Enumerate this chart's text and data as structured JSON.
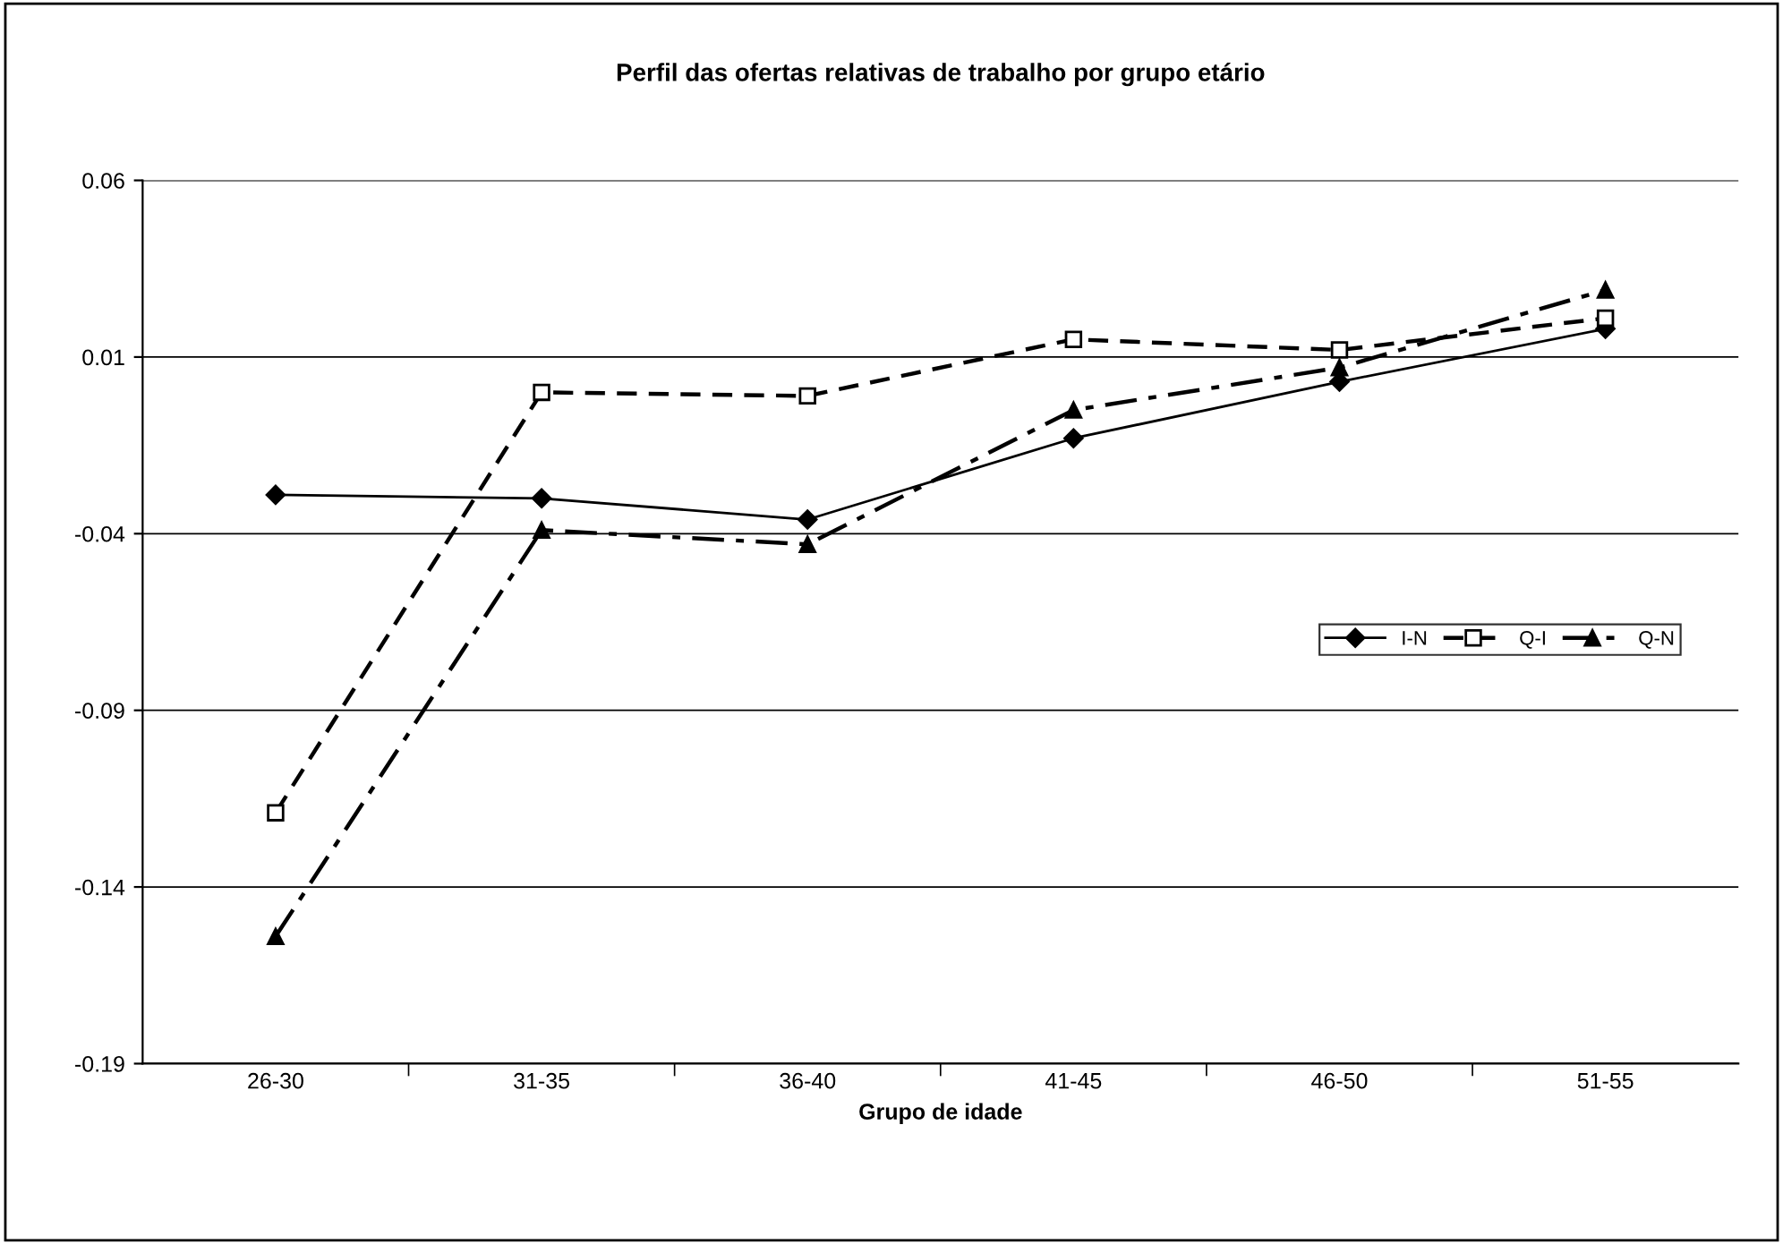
{
  "chart_data": {
    "type": "line",
    "title": "Perfil das ofertas relativas de trabalho por grupo etário",
    "xlabel": "Grupo de idade",
    "categories": [
      "26-30",
      "31-35",
      "36-40",
      "41-45",
      "46-50",
      "51-55"
    ],
    "series": [
      {
        "name": "I-N",
        "color": "#000000",
        "marker": "diamond",
        "line_style": "solid",
        "values": [
          -0.029,
          -0.03,
          -0.036,
          -0.013,
          0.003,
          0.018
        ]
      },
      {
        "name": "Q-I",
        "color": "#000000",
        "marker": "square",
        "line_style": "dashed",
        "values": [
          -0.119,
          0.0,
          -0.001,
          0.015,
          0.012,
          0.021
        ]
      },
      {
        "name": "Q-N",
        "color": "#000000",
        "marker": "triangle",
        "line_style": "dashdot",
        "values": [
          -0.154,
          -0.039,
          -0.043,
          -0.005,
          0.007,
          0.029
        ]
      }
    ],
    "ylim": [
      -0.19,
      0.06
    ],
    "yticks": [
      -0.19,
      -0.14,
      -0.09,
      -0.04,
      0.01,
      0.06
    ],
    "grid": "y",
    "legend": "right"
  }
}
